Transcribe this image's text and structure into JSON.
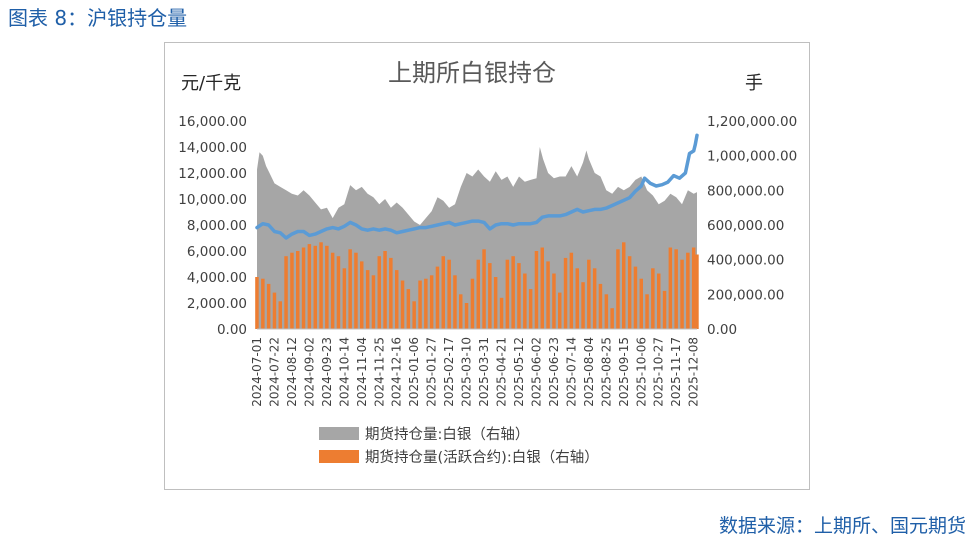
{
  "figure_label": "图表 8：沪银持仓量",
  "source_text": "数据来源：上期所、国元期货",
  "colors": {
    "total_oi": "#a6a6a6",
    "active_oi": "#ed7d31",
    "price": "#5b9bd5",
    "label_blue": "#1f5fa8"
  },
  "chart_data": {
    "type": "area",
    "title": "上期所白银持仓",
    "ylabel_left": "元/千克",
    "ylabel_right": "手",
    "ylim_left": [
      0,
      16000
    ],
    "ylim_right": [
      0,
      1200000
    ],
    "yticks_left": [
      "16,000.00",
      "14,000.00",
      "12,000.00",
      "10,000.00",
      "8,000.00",
      "6,000.00",
      "4,000.00",
      "2,000.00",
      "0.00"
    ],
    "yticks_right": [
      "1,200,000.00",
      "1,000,000.00",
      "800,000.00",
      "600,000.00",
      "400,000.00",
      "200,000.00",
      "0.00"
    ],
    "x_labels": [
      "2024-07-01",
      "2024-07-22",
      "2024-08-12",
      "2024-09-02",
      "2024-09-23",
      "2024-10-14",
      "2024-11-04",
      "2024-11-25",
      "2024-12-16",
      "2025-01-06",
      "2025-01-27",
      "2025-02-17",
      "2025-03-10",
      "2025-03-31",
      "2025-04-21",
      "2025-05-12",
      "2025-06-02",
      "2025-06-23",
      "2025-07-14",
      "2025-08-04",
      "2025-08-25",
      "2025-09-15",
      "2025-10-06",
      "2025-10-27",
      "2025-11-17",
      "2025-12-08"
    ],
    "x_start": "2024-07-01",
    "x_end": "2025-12-12",
    "legend_position": "bottom",
    "series": [
      {
        "name": "期货持仓量:白银（右轴）",
        "kind": "area",
        "axis": "right",
        "points": [
          [
            "2024-07-01",
            920000
          ],
          [
            "2024-07-04",
            1020000
          ],
          [
            "2024-07-08",
            1000000
          ],
          [
            "2024-07-12",
            940000
          ],
          [
            "2024-07-16",
            900000
          ],
          [
            "2024-07-22",
            840000
          ],
          [
            "2024-07-29",
            820000
          ],
          [
            "2024-08-05",
            800000
          ],
          [
            "2024-08-12",
            780000
          ],
          [
            "2024-08-19",
            770000
          ],
          [
            "2024-08-26",
            800000
          ],
          [
            "2024-09-02",
            770000
          ],
          [
            "2024-09-09",
            730000
          ],
          [
            "2024-09-16",
            690000
          ],
          [
            "2024-09-23",
            700000
          ],
          [
            "2024-09-30",
            640000
          ],
          [
            "2024-10-07",
            700000
          ],
          [
            "2024-10-14",
            720000
          ],
          [
            "2024-10-21",
            830000
          ],
          [
            "2024-10-28",
            800000
          ],
          [
            "2024-11-04",
            820000
          ],
          [
            "2024-11-11",
            780000
          ],
          [
            "2024-11-18",
            760000
          ],
          [
            "2024-11-25",
            720000
          ],
          [
            "2024-12-02",
            750000
          ],
          [
            "2024-12-09",
            700000
          ],
          [
            "2024-12-16",
            730000
          ],
          [
            "2024-12-23",
            700000
          ],
          [
            "2024-12-30",
            660000
          ],
          [
            "2025-01-06",
            620000
          ],
          [
            "2025-01-13",
            600000
          ],
          [
            "2025-01-20",
            640000
          ],
          [
            "2025-01-27",
            680000
          ],
          [
            "2025-02-03",
            760000
          ],
          [
            "2025-02-10",
            740000
          ],
          [
            "2025-02-17",
            700000
          ],
          [
            "2025-02-24",
            720000
          ],
          [
            "2025-03-03",
            820000
          ],
          [
            "2025-03-10",
            900000
          ],
          [
            "2025-03-17",
            880000
          ],
          [
            "2025-03-24",
            920000
          ],
          [
            "2025-03-31",
            880000
          ],
          [
            "2025-04-07",
            850000
          ],
          [
            "2025-04-14",
            910000
          ],
          [
            "2025-04-21",
            860000
          ],
          [
            "2025-04-28",
            880000
          ],
          [
            "2025-05-05",
            820000
          ],
          [
            "2025-05-12",
            880000
          ],
          [
            "2025-05-19",
            850000
          ],
          [
            "2025-05-26",
            860000
          ],
          [
            "2025-06-02",
            870000
          ],
          [
            "2025-06-06",
            1050000
          ],
          [
            "2025-06-10",
            980000
          ],
          [
            "2025-06-16",
            900000
          ],
          [
            "2025-06-23",
            870000
          ],
          [
            "2025-06-30",
            880000
          ],
          [
            "2025-07-07",
            880000
          ],
          [
            "2025-07-14",
            940000
          ],
          [
            "2025-07-21",
            880000
          ],
          [
            "2025-07-28",
            960000
          ],
          [
            "2025-08-01",
            1030000
          ],
          [
            "2025-08-04",
            980000
          ],
          [
            "2025-08-11",
            900000
          ],
          [
            "2025-08-18",
            880000
          ],
          [
            "2025-08-25",
            800000
          ],
          [
            "2025-09-01",
            780000
          ],
          [
            "2025-09-08",
            820000
          ],
          [
            "2025-09-15",
            800000
          ],
          [
            "2025-09-22",
            820000
          ],
          [
            "2025-09-29",
            860000
          ],
          [
            "2025-10-06",
            880000
          ],
          [
            "2025-10-13",
            800000
          ],
          [
            "2025-10-20",
            770000
          ],
          [
            "2025-10-27",
            720000
          ],
          [
            "2025-11-03",
            740000
          ],
          [
            "2025-11-10",
            780000
          ],
          [
            "2025-11-17",
            760000
          ],
          [
            "2025-11-24",
            720000
          ],
          [
            "2025-12-01",
            800000
          ],
          [
            "2025-12-08",
            780000
          ],
          [
            "2025-12-12",
            790000
          ]
        ]
      },
      {
        "name": "期货持仓量(活跃合约):白银（右轴）",
        "kind": "bar",
        "axis": "right",
        "points": [
          [
            "2024-07-01",
            300000
          ],
          [
            "2024-07-08",
            290000
          ],
          [
            "2024-07-15",
            260000
          ],
          [
            "2024-07-22",
            210000
          ],
          [
            "2024-07-29",
            160000
          ],
          [
            "2024-08-05",
            420000
          ],
          [
            "2024-08-12",
            440000
          ],
          [
            "2024-08-19",
            450000
          ],
          [
            "2024-08-26",
            470000
          ],
          [
            "2024-09-02",
            490000
          ],
          [
            "2024-09-09",
            480000
          ],
          [
            "2024-09-16",
            500000
          ],
          [
            "2024-09-23",
            480000
          ],
          [
            "2024-09-30",
            440000
          ],
          [
            "2024-10-07",
            420000
          ],
          [
            "2024-10-14",
            350000
          ],
          [
            "2024-10-21",
            460000
          ],
          [
            "2024-10-28",
            440000
          ],
          [
            "2024-11-04",
            390000
          ],
          [
            "2024-11-11",
            340000
          ],
          [
            "2024-11-18",
            310000
          ],
          [
            "2024-11-25",
            420000
          ],
          [
            "2024-12-02",
            450000
          ],
          [
            "2024-12-09",
            410000
          ],
          [
            "2024-12-16",
            340000
          ],
          [
            "2024-12-23",
            280000
          ],
          [
            "2024-12-30",
            230000
          ],
          [
            "2025-01-06",
            160000
          ],
          [
            "2025-01-13",
            280000
          ],
          [
            "2025-01-20",
            290000
          ],
          [
            "2025-01-27",
            310000
          ],
          [
            "2025-02-03",
            360000
          ],
          [
            "2025-02-10",
            420000
          ],
          [
            "2025-02-17",
            400000
          ],
          [
            "2025-02-24",
            310000
          ],
          [
            "2025-03-03",
            200000
          ],
          [
            "2025-03-10",
            150000
          ],
          [
            "2025-03-17",
            290000
          ],
          [
            "2025-03-24",
            400000
          ],
          [
            "2025-03-31",
            460000
          ],
          [
            "2025-04-07",
            380000
          ],
          [
            "2025-04-14",
            300000
          ],
          [
            "2025-04-21",
            180000
          ],
          [
            "2025-04-28",
            400000
          ],
          [
            "2025-05-05",
            420000
          ],
          [
            "2025-05-12",
            380000
          ],
          [
            "2025-05-19",
            320000
          ],
          [
            "2025-05-26",
            230000
          ],
          [
            "2025-06-02",
            450000
          ],
          [
            "2025-06-09",
            470000
          ],
          [
            "2025-06-16",
            390000
          ],
          [
            "2025-06-23",
            320000
          ],
          [
            "2025-06-30",
            210000
          ],
          [
            "2025-07-07",
            410000
          ],
          [
            "2025-07-14",
            440000
          ],
          [
            "2025-07-21",
            350000
          ],
          [
            "2025-07-28",
            270000
          ],
          [
            "2025-08-04",
            400000
          ],
          [
            "2025-08-11",
            350000
          ],
          [
            "2025-08-18",
            260000
          ],
          [
            "2025-08-25",
            200000
          ],
          [
            "2025-09-01",
            120000
          ],
          [
            "2025-09-08",
            460000
          ],
          [
            "2025-09-15",
            500000
          ],
          [
            "2025-09-22",
            420000
          ],
          [
            "2025-09-29",
            360000
          ],
          [
            "2025-10-06",
            290000
          ],
          [
            "2025-10-13",
            200000
          ],
          [
            "2025-10-20",
            350000
          ],
          [
            "2025-10-27",
            320000
          ],
          [
            "2025-11-03",
            220000
          ],
          [
            "2025-11-10",
            470000
          ],
          [
            "2025-11-17",
            460000
          ],
          [
            "2025-11-24",
            400000
          ],
          [
            "2025-12-01",
            440000
          ],
          [
            "2025-12-08",
            470000
          ],
          [
            "2025-12-12",
            430000
          ]
        ]
      },
      {
        "kind": "line",
        "axis": "left",
        "points": [
          [
            "2024-07-01",
            7800
          ],
          [
            "2024-07-08",
            8100
          ],
          [
            "2024-07-15",
            8000
          ],
          [
            "2024-07-22",
            7500
          ],
          [
            "2024-07-29",
            7400
          ],
          [
            "2024-08-05",
            7000
          ],
          [
            "2024-08-12",
            7300
          ],
          [
            "2024-08-19",
            7500
          ],
          [
            "2024-08-26",
            7500
          ],
          [
            "2024-09-02",
            7200
          ],
          [
            "2024-09-09",
            7300
          ],
          [
            "2024-09-16",
            7500
          ],
          [
            "2024-09-23",
            7700
          ],
          [
            "2024-09-30",
            7800
          ],
          [
            "2024-10-07",
            7700
          ],
          [
            "2024-10-14",
            7900
          ],
          [
            "2024-10-21",
            8200
          ],
          [
            "2024-10-28",
            8000
          ],
          [
            "2024-11-04",
            7700
          ],
          [
            "2024-11-11",
            7600
          ],
          [
            "2024-11-18",
            7700
          ],
          [
            "2024-11-25",
            7600
          ],
          [
            "2024-12-02",
            7700
          ],
          [
            "2024-12-09",
            7600
          ],
          [
            "2024-12-16",
            7400
          ],
          [
            "2024-12-23",
            7500
          ],
          [
            "2024-12-30",
            7600
          ],
          [
            "2025-01-06",
            7700
          ],
          [
            "2025-01-13",
            7800
          ],
          [
            "2025-01-20",
            7800
          ],
          [
            "2025-01-27",
            7900
          ],
          [
            "2025-02-03",
            8000
          ],
          [
            "2025-02-10",
            8100
          ],
          [
            "2025-02-17",
            8200
          ],
          [
            "2025-02-24",
            8000
          ],
          [
            "2025-03-03",
            8100
          ],
          [
            "2025-03-10",
            8200
          ],
          [
            "2025-03-17",
            8300
          ],
          [
            "2025-03-24",
            8300
          ],
          [
            "2025-03-31",
            8200
          ],
          [
            "2025-04-07",
            7700
          ],
          [
            "2025-04-14",
            8000
          ],
          [
            "2025-04-21",
            8100
          ],
          [
            "2025-04-28",
            8100
          ],
          [
            "2025-05-05",
            8000
          ],
          [
            "2025-05-12",
            8100
          ],
          [
            "2025-05-19",
            8100
          ],
          [
            "2025-05-26",
            8100
          ],
          [
            "2025-06-02",
            8200
          ],
          [
            "2025-06-09",
            8600
          ],
          [
            "2025-06-16",
            8700
          ],
          [
            "2025-06-23",
            8700
          ],
          [
            "2025-06-30",
            8700
          ],
          [
            "2025-07-07",
            8800
          ],
          [
            "2025-07-14",
            9000
          ],
          [
            "2025-07-21",
            9200
          ],
          [
            "2025-07-28",
            9000
          ],
          [
            "2025-08-04",
            9100
          ],
          [
            "2025-08-11",
            9200
          ],
          [
            "2025-08-18",
            9200
          ],
          [
            "2025-08-25",
            9300
          ],
          [
            "2025-09-01",
            9500
          ],
          [
            "2025-09-08",
            9700
          ],
          [
            "2025-09-15",
            9900
          ],
          [
            "2025-09-22",
            10100
          ],
          [
            "2025-09-29",
            10600
          ],
          [
            "2025-10-06",
            11000
          ],
          [
            "2025-10-10",
            11600
          ],
          [
            "2025-10-17",
            11200
          ],
          [
            "2025-10-24",
            11000
          ],
          [
            "2025-10-31",
            11100
          ],
          [
            "2025-11-07",
            11300
          ],
          [
            "2025-11-14",
            11800
          ],
          [
            "2025-11-21",
            11600
          ],
          [
            "2025-11-28",
            12000
          ],
          [
            "2025-12-03",
            13500
          ],
          [
            "2025-12-08",
            13700
          ],
          [
            "2025-12-10",
            14200
          ],
          [
            "2025-12-12",
            14900
          ]
        ]
      }
    ]
  }
}
